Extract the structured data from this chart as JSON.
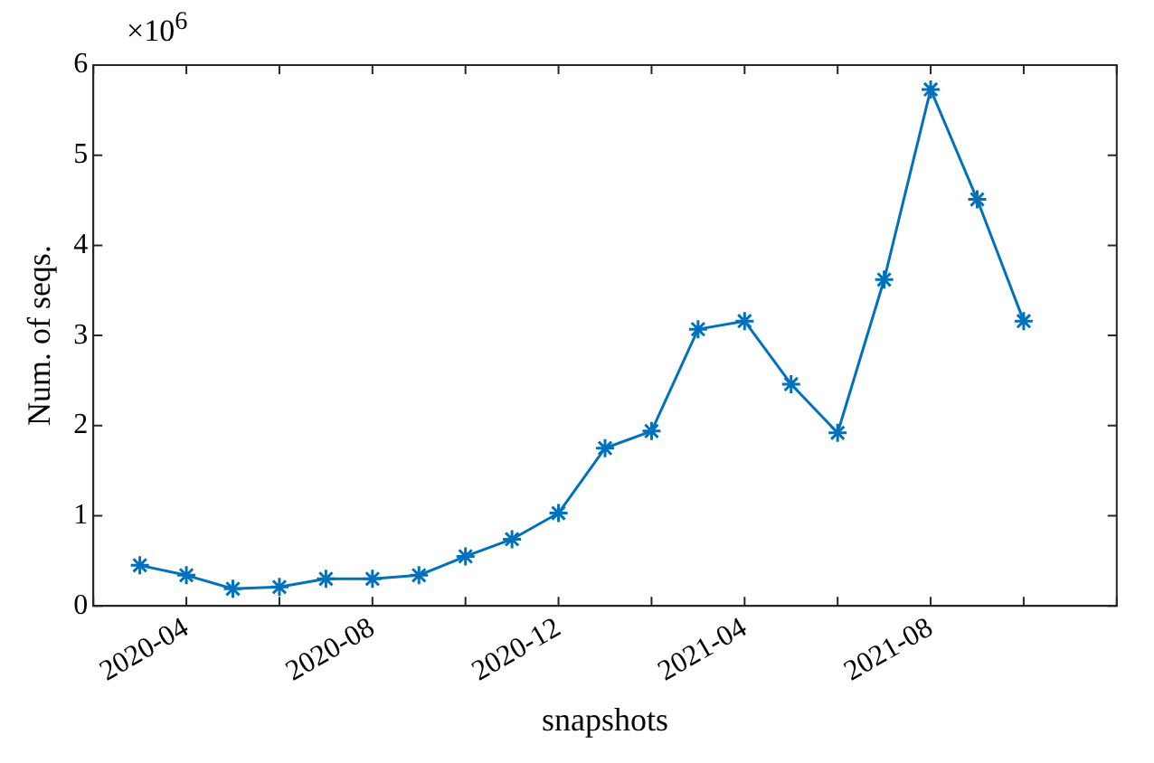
{
  "chart_data": {
    "type": "line",
    "xlabel": "snapshots",
    "ylabel": "Num. of seqs.",
    "annotations": [
      "×10$^{6}$"
    ],
    "x": [
      "2020-03",
      "2020-04",
      "2020-05",
      "2020-06",
      "2020-07",
      "2020-08",
      "2020-09",
      "2020-10",
      "2020-11",
      "2020-12",
      "2021-01",
      "2021-02",
      "2021-03",
      "2021-04",
      "2021-05",
      "2021-06",
      "2021-07",
      "2021-08",
      "2021-09",
      "2021-10"
    ],
    "series": [
      {
        "color": "#0072bd",
        "values": [
          0.45,
          0.34,
          0.19,
          0.21,
          0.3,
          0.3,
          0.34,
          0.55,
          0.74,
          1.03,
          1.75,
          1.94,
          3.07,
          3.16,
          2.46,
          1.92,
          3.62,
          5.73,
          4.51,
          3.16
        ]
      }
    ],
    "xlim": [
      "2020-02",
      "2021-12"
    ],
    "xticks": [
      {
        "value": "2020-02",
        "label": null
      },
      "2020-04",
      {
        "value": "2020-06",
        "label": null
      },
      "2020-08",
      {
        "value": "2020-10",
        "label": null
      },
      "2020-12",
      {
        "value": "2021-02",
        "label": null
      },
      "2021-04",
      {
        "value": "2021-06",
        "label": null
      },
      "2021-08",
      {
        "value": "2021-10",
        "label": null
      },
      {
        "value": "2021-12",
        "label": null
      }
    ],
    "ylim": [
      0,
      6
    ],
    "yticks": [
      0,
      1,
      2,
      3,
      4,
      5,
      6
    ],
    "grid": false,
    "legend": false,
    "marker": "cross",
    "line_style": "solid"
  }
}
